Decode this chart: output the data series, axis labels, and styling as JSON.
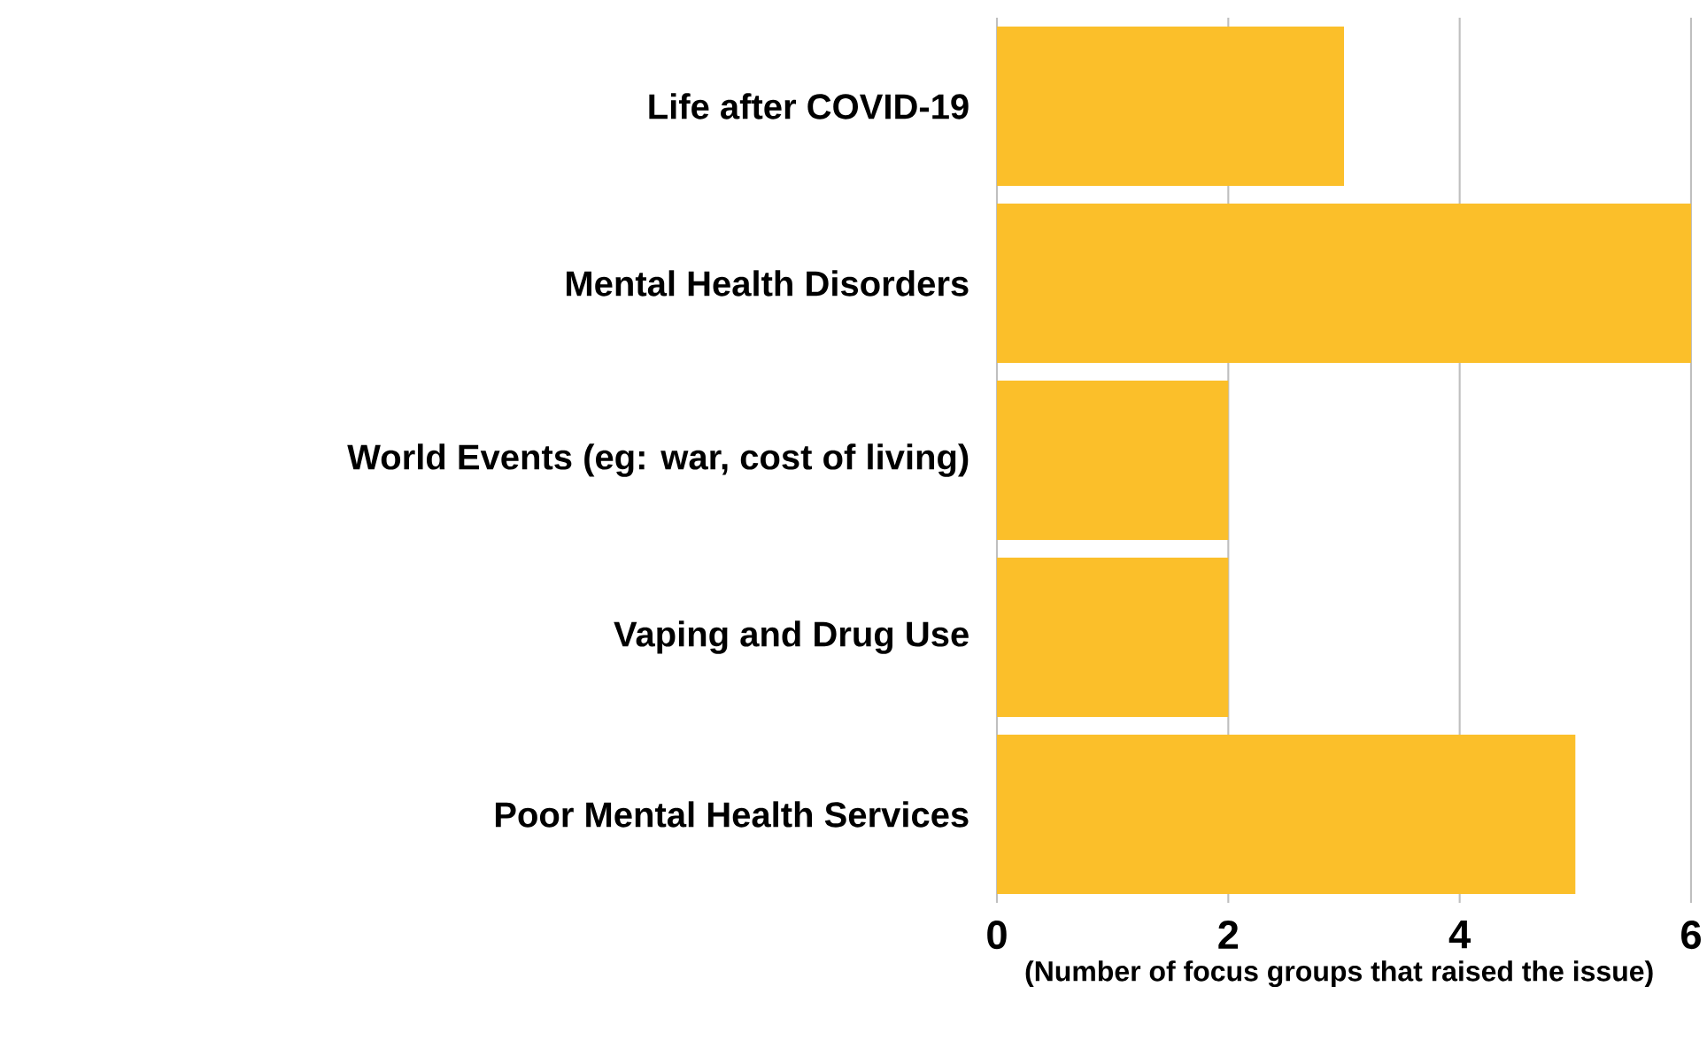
{
  "chart_data": {
    "type": "bar",
    "orientation": "horizontal",
    "xlabel": "(Number of focus groups that raised the issue)",
    "categories": [
      "Life after COVID-19",
      "Mental Health Disorders",
      "World Events (eg: war, cost of living)",
      "Vaping and Drug Use",
      "Poor Mental Health Services"
    ],
    "values": [
      3,
      6,
      2,
      2,
      5
    ],
    "color": "#fbbf2a",
    "xlim": [
      0,
      6
    ],
    "xticks": [
      0,
      2,
      4,
      6
    ],
    "grid": "x"
  }
}
